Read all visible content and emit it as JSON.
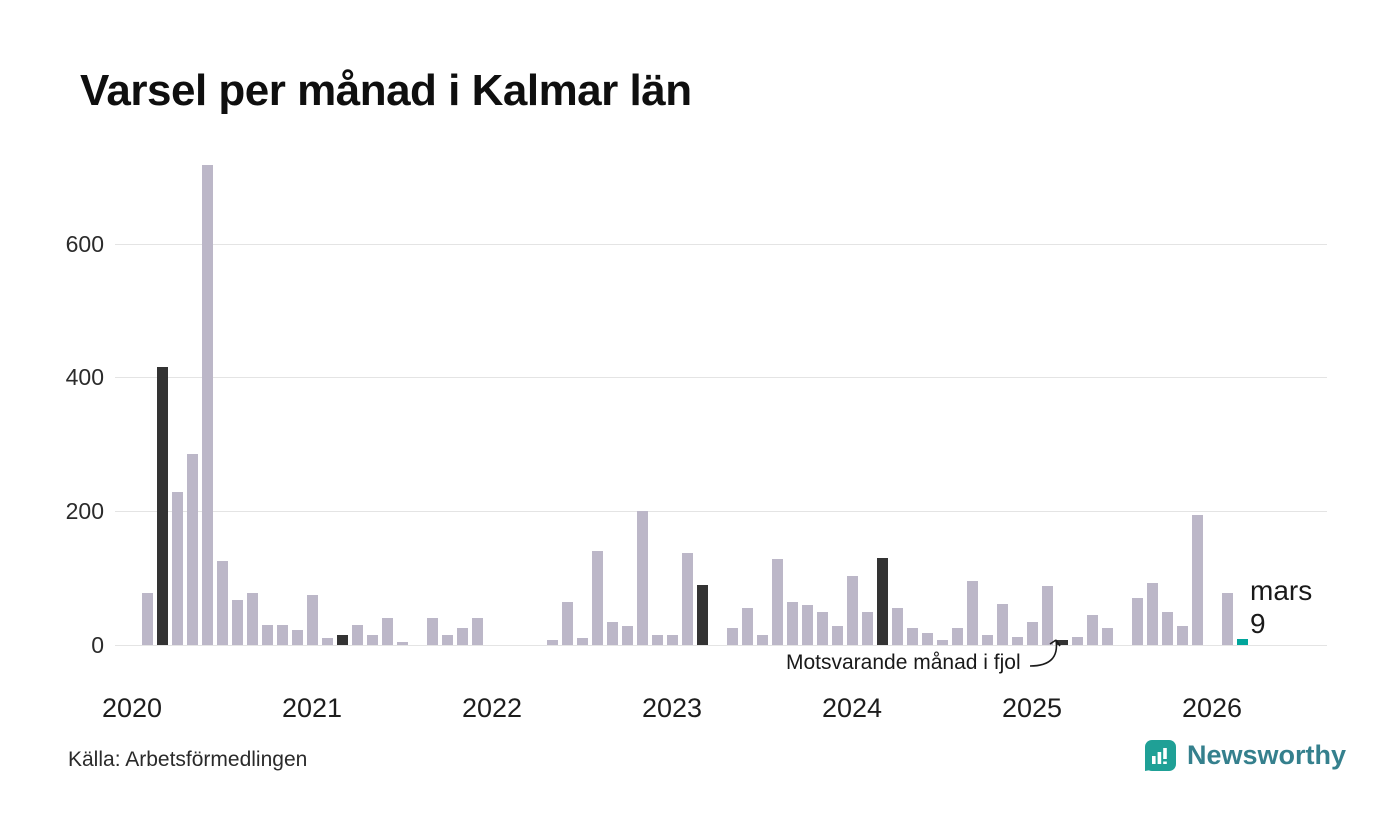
{
  "title": "Varsel per månad i Kalmar län",
  "source": "Källa: Arbetsförmedlingen",
  "annotation": "Motsvarande månad i fjol",
  "current_point_label": {
    "month": "mars",
    "value": "9"
  },
  "logo": {
    "name": "Newsworthy"
  },
  "colors": {
    "bar": "#bcb7c8",
    "march_highlight": "#333333",
    "current": "#00a59b",
    "grid": "#e4e4e4",
    "logo_icon": "#1fa096",
    "logo_text": "#35808d"
  },
  "chart_data": {
    "type": "bar",
    "title": "Varsel per månad i Kalmar län",
    "xlabel": "",
    "ylabel": "",
    "ylim": [
      0,
      740
    ],
    "yticks": [
      0,
      200,
      400,
      600
    ],
    "grid": true,
    "legend": false,
    "year_labels": [
      "2020",
      "2021",
      "2022",
      "2023",
      "2024",
      "2025",
      "2026"
    ],
    "months": [
      "2020-01",
      "2020-02",
      "2020-03",
      "2020-04",
      "2020-05",
      "2020-06",
      "2020-07",
      "2020-08",
      "2020-09",
      "2020-10",
      "2020-11",
      "2020-12",
      "2021-01",
      "2021-02",
      "2021-03",
      "2021-04",
      "2021-05",
      "2021-06",
      "2021-07",
      "2021-08",
      "2021-09",
      "2021-10",
      "2021-11",
      "2021-12",
      "2022-01",
      "2022-02",
      "2022-03",
      "2022-04",
      "2022-05",
      "2022-06",
      "2022-07",
      "2022-08",
      "2022-09",
      "2022-10",
      "2022-11",
      "2022-12",
      "2023-01",
      "2023-02",
      "2023-03",
      "2023-04",
      "2023-05",
      "2023-06",
      "2023-07",
      "2023-08",
      "2023-09",
      "2023-10",
      "2023-11",
      "2023-12",
      "2024-01",
      "2024-02",
      "2024-03",
      "2024-04",
      "2024-05",
      "2024-06",
      "2024-07",
      "2024-08",
      "2024-09",
      "2024-10",
      "2024-11",
      "2024-12",
      "2025-01",
      "2025-02",
      "2025-03",
      "2025-04",
      "2025-05",
      "2025-06",
      "2025-07",
      "2025-08",
      "2025-09",
      "2025-10",
      "2025-11",
      "2025-12",
      "2026-01",
      "2026-02",
      "2026-03"
    ],
    "values": [
      0,
      78,
      415,
      228,
      285,
      718,
      125,
      68,
      78,
      30,
      30,
      22,
      75,
      10,
      15,
      30,
      15,
      40,
      5,
      0,
      40,
      15,
      25,
      40,
      0,
      0,
      0,
      0,
      8,
      65,
      10,
      140,
      35,
      28,
      200,
      15,
      15,
      138,
      90,
      0,
      25,
      55,
      15,
      128,
      65,
      60,
      50,
      28,
      103,
      50,
      130,
      55,
      25,
      18,
      8,
      25,
      95,
      15,
      62,
      12,
      35,
      88,
      8,
      12,
      45,
      25,
      0,
      70,
      93,
      50,
      28,
      195,
      0,
      78,
      9
    ],
    "highlight_months": [
      "2020-03",
      "2021-03",
      "2022-03",
      "2023-03",
      "2024-03",
      "2025-03"
    ],
    "current_month": "2026-03",
    "current_value": 9
  }
}
